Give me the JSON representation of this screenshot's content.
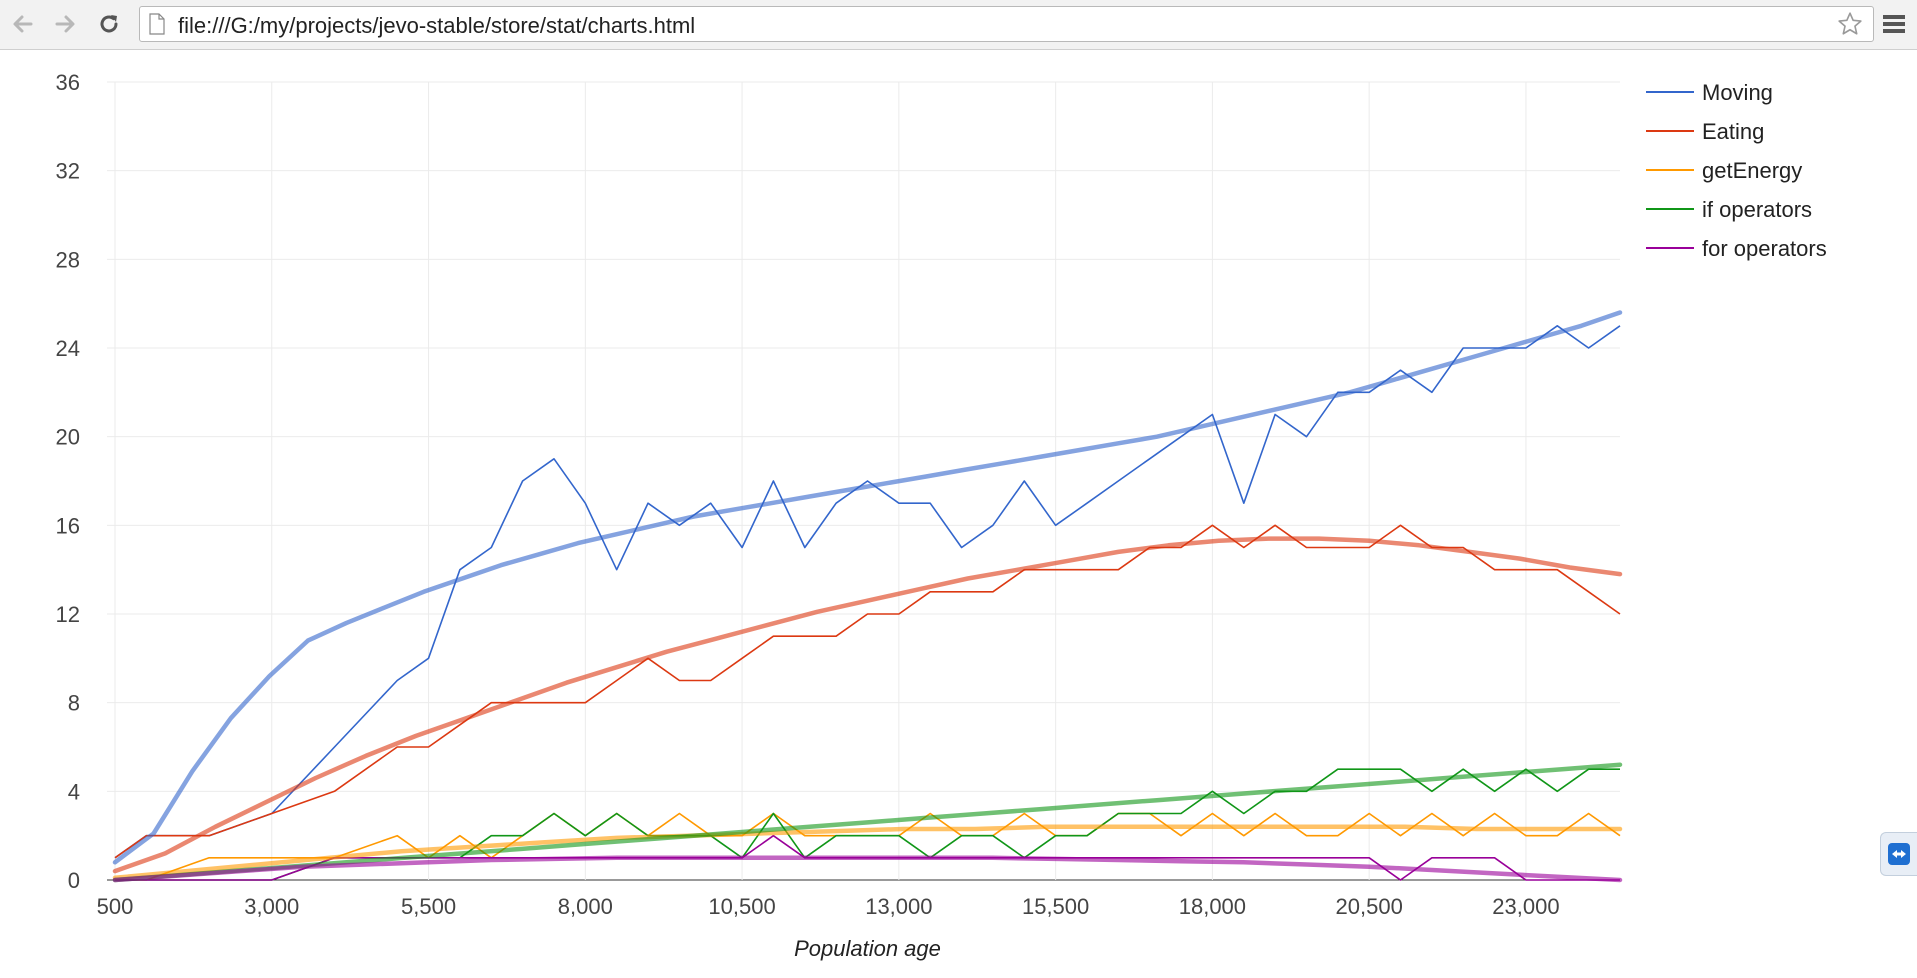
{
  "browser": {
    "url": "file:///G:/my/projects/jevo-stable/store/stat/charts.html"
  },
  "icons": {
    "back": "back-arrow-icon",
    "forward": "forward-arrow-icon",
    "reload": "reload-icon",
    "page": "page-icon",
    "bookmark": "star-icon",
    "menu": "menu-icon",
    "remote": "remote-support-icon"
  },
  "chart_data": {
    "type": "line",
    "title": "",
    "xlabel": "Population age",
    "ylabel": "",
    "xlim": [
      500,
      24500
    ],
    "ylim": [
      0,
      36
    ],
    "grid": true,
    "legend_position": "right-top",
    "x_ticks": [
      500,
      3000,
      5500,
      8000,
      10500,
      13000,
      15500,
      18000,
      20500,
      23000
    ],
    "x_tick_labels": [
      "500",
      "3,000",
      "5,500",
      "8,000",
      "10,500",
      "13,000",
      "15,500",
      "18,000",
      "20,500",
      "23,000"
    ],
    "y_ticks": [
      0,
      4,
      8,
      12,
      16,
      20,
      24,
      28,
      32,
      36
    ],
    "y_tick_labels": [
      "0",
      "4",
      "8",
      "12",
      "16",
      "20",
      "24",
      "28",
      "32",
      "36"
    ],
    "series": [
      {
        "name": "Moving",
        "color": "#3366cc",
        "x": [
          300,
          1000,
          2000,
          3000,
          4000,
          5000,
          5500,
          6000,
          6500,
          7000,
          7500,
          8000,
          8500,
          9000,
          9500,
          10000,
          10500,
          11000,
          11500,
          12000,
          12500,
          13000,
          13500,
          14000,
          14500,
          15000,
          15500,
          16000,
          16500,
          17000,
          17500,
          18000,
          18500,
          19000,
          19500,
          20000,
          20500,
          21000,
          21500,
          22000,
          22500,
          23000,
          23500,
          24000,
          24500
        ],
        "values": [
          1,
          2,
          2,
          3,
          6,
          9,
          10,
          14,
          15,
          18,
          19,
          17,
          14,
          17,
          16,
          17,
          15,
          18,
          15,
          17,
          18,
          17,
          17,
          15,
          16,
          18,
          16,
          17,
          18,
          19,
          20,
          21,
          17,
          21,
          20,
          22,
          22,
          23,
          22,
          24,
          24,
          24,
          25,
          24,
          25
        ],
        "trend": [
          0.8,
          2.1,
          4.9,
          7.3,
          9.2,
          10.8,
          11.6,
          12.3,
          13.0,
          13.6,
          14.2,
          14.7,
          15.2,
          15.6,
          16.0,
          16.4,
          16.7,
          17.0,
          17.3,
          17.6,
          17.9,
          18.2,
          18.5,
          18.8,
          19.1,
          19.4,
          19.7,
          20.0,
          20.4,
          20.8,
          21.2,
          21.6,
          22.0,
          22.5,
          23.0,
          23.5,
          24.0,
          24.5,
          25.0,
          25.6
        ]
      },
      {
        "name": "Eating",
        "color": "#dc3912",
        "x": [
          300,
          1000,
          2000,
          3000,
          4000,
          5000,
          5500,
          6000,
          6500,
          7000,
          7500,
          8000,
          8500,
          9000,
          9500,
          10000,
          10500,
          11000,
          11500,
          12000,
          12500,
          13000,
          13500,
          14000,
          14500,
          15000,
          15500,
          16000,
          16500,
          17000,
          17500,
          18000,
          18500,
          19000,
          19500,
          20000,
          20500,
          21000,
          21500,
          22000,
          22500,
          23000,
          23500,
          24000,
          24500
        ],
        "values": [
          1,
          2,
          2,
          3,
          4,
          6,
          6,
          7,
          8,
          8,
          8,
          8,
          9,
          10,
          9,
          9,
          10,
          11,
          11,
          11,
          12,
          12,
          13,
          13,
          13,
          14,
          14,
          14,
          14,
          15,
          15,
          16,
          15,
          16,
          15,
          15,
          15,
          16,
          15,
          15,
          14,
          14,
          14,
          13,
          12
        ],
        "trend": [
          0.4,
          1.2,
          2.4,
          3.5,
          4.6,
          5.6,
          6.5,
          7.3,
          8.1,
          8.9,
          9.6,
          10.3,
          10.9,
          11.5,
          12.1,
          12.6,
          13.1,
          13.6,
          14.0,
          14.4,
          14.8,
          15.1,
          15.3,
          15.4,
          15.4,
          15.3,
          15.1,
          14.8,
          14.5,
          14.1,
          13.8
        ]
      },
      {
        "name": "getEnergy",
        "color": "#ff9900",
        "x": [
          300,
          1000,
          2000,
          3000,
          4000,
          5000,
          5500,
          6000,
          6500,
          7000,
          7500,
          8000,
          8500,
          9000,
          9500,
          10000,
          10500,
          11000,
          11500,
          12000,
          12500,
          13000,
          13500,
          14000,
          14500,
          15000,
          15500,
          16000,
          16500,
          17000,
          17500,
          18000,
          18500,
          19000,
          19500,
          20000,
          20500,
          21000,
          21500,
          22000,
          22500,
          23000,
          23500,
          24000,
          24500
        ],
        "values": [
          0,
          0,
          1,
          1,
          1,
          2,
          1,
          2,
          1,
          2,
          3,
          2,
          3,
          2,
          3,
          2,
          2,
          3,
          2,
          2,
          2,
          2,
          3,
          2,
          2,
          3,
          2,
          2,
          3,
          3,
          2,
          3,
          2,
          3,
          2,
          2,
          3,
          2,
          3,
          2,
          3,
          2,
          2,
          3,
          2
        ],
        "trend": [
          0.1,
          0.4,
          0.7,
          1.0,
          1.3,
          1.5,
          1.7,
          1.9,
          2.0,
          2.1,
          2.2,
          2.3,
          2.3,
          2.4,
          2.4,
          2.4,
          2.4,
          2.4,
          2.4,
          2.3,
          2.3,
          2.3
        ]
      },
      {
        "name": "if operators",
        "color": "#109618",
        "x": [
          300,
          1000,
          2000,
          3000,
          4000,
          5000,
          5500,
          6000,
          6500,
          7000,
          7500,
          8000,
          8500,
          9000,
          9500,
          10000,
          10500,
          11000,
          11500,
          12000,
          12500,
          13000,
          13500,
          14000,
          14500,
          15000,
          15500,
          16000,
          16500,
          17000,
          17500,
          18000,
          18500,
          19000,
          19500,
          20000,
          20500,
          21000,
          21500,
          22000,
          22500,
          23000,
          23500,
          24000,
          24500
        ],
        "values": [
          0,
          0,
          0,
          0,
          1,
          1,
          1,
          1,
          2,
          2,
          3,
          2,
          3,
          2,
          2,
          2,
          1,
          3,
          1,
          2,
          2,
          2,
          1,
          2,
          2,
          1,
          2,
          2,
          3,
          3,
          3,
          4,
          3,
          4,
          4,
          5,
          5,
          5,
          4,
          5,
          4,
          5,
          4,
          5,
          5
        ],
        "trend": [
          0.0,
          0.2,
          0.4,
          0.6,
          0.8,
          1.0,
          1.2,
          1.4,
          1.6,
          1.8,
          2.0,
          2.2,
          2.4,
          2.6,
          2.8,
          3.0,
          3.2,
          3.4,
          3.6,
          3.8,
          4.0,
          4.2,
          4.4,
          4.6,
          4.8,
          5.0,
          5.2
        ]
      },
      {
        "name": "for operators",
        "color": "#990099",
        "x": [
          300,
          1000,
          2000,
          3000,
          4000,
          5000,
          5500,
          6000,
          6500,
          7000,
          7500,
          8000,
          8500,
          9000,
          9500,
          10000,
          10500,
          11000,
          11500,
          12000,
          12500,
          13000,
          13500,
          14000,
          14500,
          15000,
          15500,
          16000,
          16500,
          17000,
          17500,
          18000,
          18500,
          19000,
          19500,
          20000,
          20500,
          21000,
          21500,
          22000,
          22500,
          23000,
          23500,
          24000,
          24500
        ],
        "values": [
          0,
          0,
          0,
          0,
          1,
          1,
          1,
          1,
          1,
          1,
          1,
          1,
          1,
          1,
          1,
          1,
          1,
          2,
          1,
          1,
          1,
          1,
          1,
          1,
          1,
          1,
          1,
          1,
          1,
          1,
          1,
          1,
          1,
          1,
          1,
          1,
          1,
          0,
          1,
          1,
          1,
          0,
          0,
          0,
          0
        ],
        "trend": [
          0.0,
          0.2,
          0.4,
          0.6,
          0.7,
          0.8,
          0.9,
          0.95,
          1.0,
          1.0,
          1.0,
          1.0,
          1.0,
          1.0,
          1.0,
          0.95,
          0.9,
          0.85,
          0.8,
          0.7,
          0.6,
          0.45,
          0.3,
          0.15,
          0.0
        ]
      }
    ]
  }
}
